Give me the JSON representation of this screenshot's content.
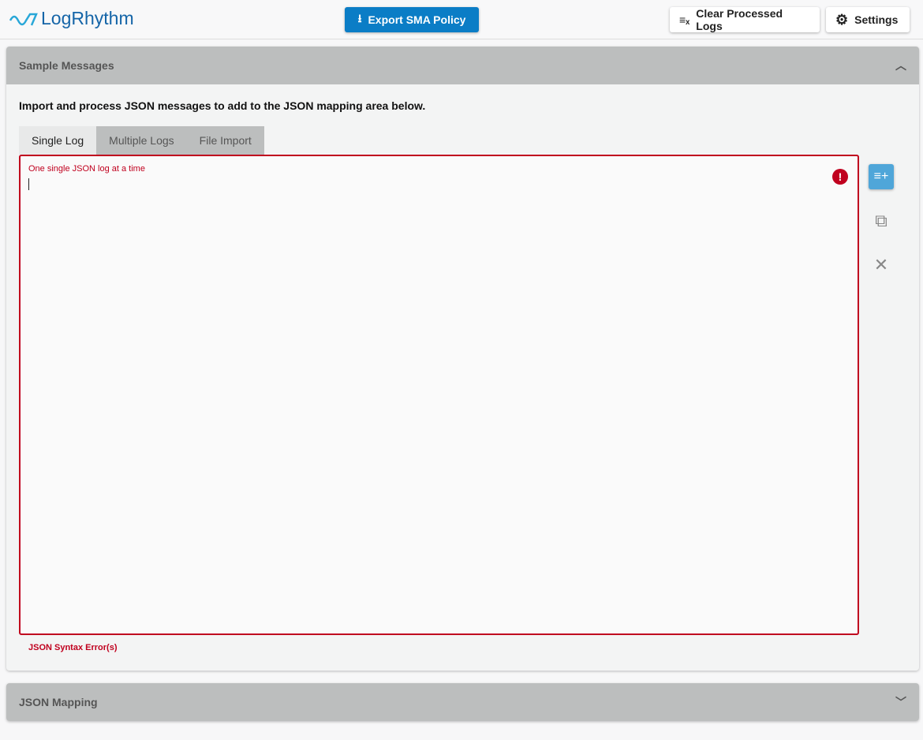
{
  "header": {
    "logo": "LogRhythm",
    "export_label": "Export SMA Policy",
    "clear_label": "Clear Processed Logs",
    "settings_label": "Settings"
  },
  "sample": {
    "title": "Sample Messages",
    "description": "Import and process JSON messages to add to the JSON mapping area below.",
    "tabs": [
      {
        "label": "Single Log"
      },
      {
        "label": "Multiple Logs"
      },
      {
        "label": "File Import"
      }
    ],
    "hint": "One single JSON log at a time",
    "error_text": "JSON Syntax Error(s)"
  },
  "mapping": {
    "title": "JSON Mapping"
  },
  "colors": {
    "accent": "#0b7dc6",
    "error": "#c0001e"
  }
}
